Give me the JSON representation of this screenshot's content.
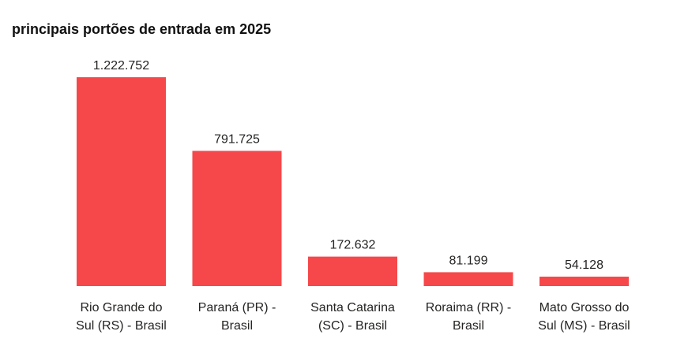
{
  "chart_data": {
    "type": "bar",
    "title": "principais portões de entrada em 2025",
    "categories": [
      "Rio Grande do Sul (RS) - Brasil",
      "Paraná (PR) - Brasil",
      "Santa Catarina (SC) - Brasil",
      "Roraima (RR) - Brasil",
      "Mato Grosso do Sul (MS) - Brasil"
    ],
    "category_lines": [
      [
        "Rio Grande do",
        "Sul (RS) - Brasil"
      ],
      [
        "Paraná (PR) -",
        "Brasil"
      ],
      [
        "Santa Catarina",
        "(SC) - Brasil"
      ],
      [
        "Roraima (RR) -",
        "Brasil"
      ],
      [
        "Mato Grosso do",
        "Sul (MS) - Brasil"
      ]
    ],
    "values": [
      1222752,
      791725,
      172632,
      81199,
      54128
    ],
    "value_labels": [
      "1.222.752",
      "791.725",
      "172.632",
      "81.199",
      "54.128"
    ],
    "xlabel": "",
    "ylabel": "",
    "ylim": [
      0,
      1222752
    ],
    "grid": false,
    "bar_color": "#f6484a"
  }
}
